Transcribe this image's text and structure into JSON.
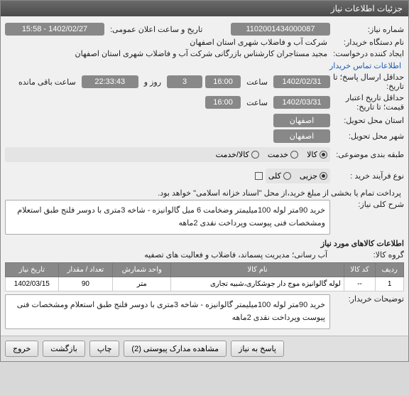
{
  "window": {
    "title": "جزئیات اطلاعات نیاز"
  },
  "fields": {
    "need_no_label": "شماره نیاز:",
    "need_no": "1102001434000087",
    "public_date_label": "تاریخ و ساعت اعلان عمومی:",
    "public_date": "1402/02/27 - 15:58",
    "buyer_label": "نام دستگاه خریدار:",
    "buyer": "شرکت آب و فاضلاب شهری استان اصفهان",
    "requester_label": "ایجاد کننده درخواست:",
    "requester": "مجید مستاجران کارشناس بازرگانی شرکت آب و فاضلاب شهری استان اصفهان",
    "contact_link": "اطلاعات تماس خریدار",
    "reply_deadline_label": "حداقل ارسال پاسخ؛ تا تاریخ:",
    "reply_deadline_date": "1402/02/31",
    "time_label": "ساعت",
    "reply_deadline_time": "16:00",
    "day_label": "روز و",
    "days": "3",
    "remaining_time": "22:33:43",
    "remaining_label": "ساعت باقی مانده",
    "validity_label": "حداقل تاریخ اعتبار قیمت؛ تا تاریخ:",
    "validity_date": "1402/03/31",
    "validity_time": "16:00",
    "city_label": "استان محل تحویل:",
    "city": "اصفهان",
    "city2_label": "شهر محل تحویل:",
    "city2": "اصفهان",
    "group_label": "طبقه بندی موضوعی:",
    "group_opts": [
      "کالا",
      "خدمت",
      "کالا/خدمت"
    ],
    "group_selected": 0,
    "process_label": "نوع فرآیند خرید :",
    "process_opts": [
      "جزیی",
      "کلی"
    ],
    "process_selected": 0,
    "payment_note": "پرداخت تمام یا بخشی از مبلغ خرید،از محل \"اسناد خزانه اسلامی\" خواهد بود.",
    "desc_label": "شرح کلی نیاز:",
    "desc": "خرید 90متر لوله 100میلیمتر وضخامت 6 میل  گالوانیزه - شاخه 3متری با دوسر فلنج طبق استعلام ومشخصات فنی پیوست وپرداخت نقدی 2ماهه",
    "items_hdr": "اطلاعات کالاهای مورد نیاز",
    "goods_group_label": "گروه کالا:",
    "goods_group": "آب رسانی؛ مدیریت پسماند، فاضلاب و فعالیت های تصفیه",
    "buyer_notes_label": "توضیحات خریدار:",
    "buyer_notes": "خرید 90متر لوله 100میلیمتر گالوانیزه - شاخه 3متری با دوسر فلنج طبق استعلام ومشخصات فنی پیوست وپرداخت نقدی 2ماهه"
  },
  "table": {
    "cols": [
      "ردیف",
      "کد کالا",
      "نام کالا",
      "واحد شمارش",
      "تعداد / مقدار",
      "تاریخ نیاز"
    ],
    "rows": [
      [
        "1",
        "--",
        "لوله گالوانیزه موج دار جوشکاری،شبیه تجاری",
        "متر",
        "90",
        "1402/03/15"
      ]
    ]
  },
  "buttons": {
    "reply": "پاسخ به نیاز",
    "attachments": "مشاهده مدارک پیوستی (2)",
    "print": "چاپ",
    "back": "بازگشت",
    "exit": "خروج"
  }
}
